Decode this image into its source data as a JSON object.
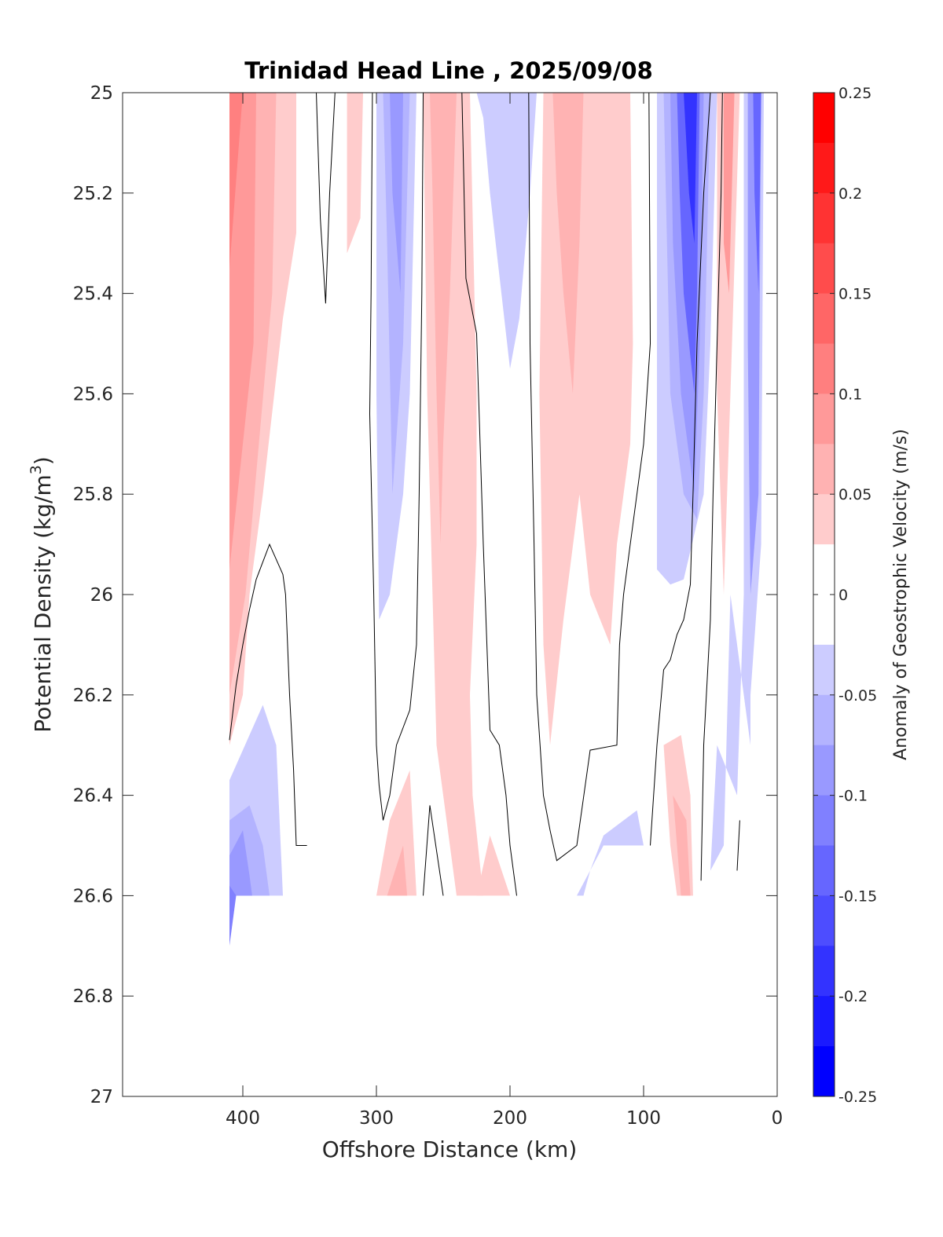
{
  "chart_data": {
    "type": "heatmap",
    "title": "Trinidad Head Line , 2025/09/08",
    "xlabel": "Offshore Distance (km)",
    "ylabel_main": "Potential Density (kg/m",
    "ylabel_sup": "3",
    "ylabel_close": ")",
    "colorbar_label": "Anomaly of Geostrophic Velocity (m/s)",
    "x_axis": {
      "min": 0,
      "max": 490,
      "reversed": true,
      "ticks": [
        400,
        300,
        200,
        100,
        0
      ],
      "tick_labels": [
        "400",
        "300",
        "200",
        "100",
        "0"
      ]
    },
    "y_axis": {
      "min": 25,
      "max": 27,
      "reversed": true,
      "ticks": [
        25,
        25.2,
        25.4,
        25.6,
        25.8,
        26,
        26.2,
        26.4,
        26.6,
        26.8,
        27
      ],
      "tick_labels": [
        "25",
        "25.2",
        "25.4",
        "25.6",
        "25.8",
        "26",
        "26.2",
        "26.4",
        "26.6",
        "26.8",
        "27"
      ]
    },
    "colorbar": {
      "min": -0.25,
      "max": 0.25,
      "step": 0.025,
      "ticks": [
        0.25,
        0.2,
        0.15,
        0.1,
        0.05,
        0,
        -0.05,
        -0.1,
        -0.15,
        -0.2,
        -0.25
      ],
      "tick_labels": [
        "0.25",
        "0.2",
        "0.15",
        "0.1",
        "0.05",
        "0",
        "-0.05",
        "-0.1",
        "-0.15",
        "-0.2",
        "-0.25"
      ],
      "negative_color": "#0000ff",
      "positive_color": "#ff0000",
      "zero_color": "#ffffff"
    },
    "grid": false,
    "contour_levels": [
      0
    ],
    "shaded_regions": [
      {
        "value": 0.05,
        "polygon": [
          [
            410,
            25
          ],
          [
            360,
            25
          ],
          [
            360,
            25.28
          ],
          [
            370,
            25.45
          ],
          [
            385,
            25.8
          ],
          [
            395,
            26.0
          ],
          [
            400,
            26.2
          ],
          [
            410,
            26.3
          ]
        ]
      },
      {
        "value": 0.075,
        "polygon": [
          [
            410,
            25
          ],
          [
            375,
            25
          ],
          [
            378,
            25.4
          ],
          [
            388,
            25.7
          ],
          [
            398,
            26.0
          ],
          [
            410,
            26.2
          ]
        ]
      },
      {
        "value": 0.1,
        "polygon": [
          [
            410,
            25
          ],
          [
            390,
            25
          ],
          [
            392,
            25.5
          ],
          [
            410,
            25.95
          ]
        ]
      },
      {
        "value": 0.125,
        "polygon": [
          [
            410,
            25
          ],
          [
            400,
            25
          ],
          [
            410,
            25.35
          ]
        ]
      },
      {
        "value": -0.05,
        "polygon": [
          [
            410,
            26.37
          ],
          [
            390,
            26.25
          ],
          [
            385,
            26.22
          ],
          [
            375,
            26.3
          ],
          [
            370,
            26.6
          ],
          [
            410,
            26.6
          ]
        ]
      },
      {
        "value": -0.075,
        "polygon": [
          [
            410,
            26.45
          ],
          [
            395,
            26.42
          ],
          [
            385,
            26.5
          ],
          [
            380,
            26.6
          ],
          [
            410,
            26.6
          ]
        ]
      },
      {
        "value": -0.1,
        "polygon": [
          [
            410,
            26.52
          ],
          [
            400,
            26.47
          ],
          [
            395,
            26.56
          ],
          [
            393,
            26.6
          ],
          [
            410,
            26.6
          ]
        ]
      },
      {
        "value": -0.125,
        "polygon": [
          [
            410,
            26.58
          ],
          [
            405,
            26.6
          ],
          [
            410,
            26.7
          ]
        ]
      },
      {
        "value": 0.05,
        "polygon": [
          [
            322,
            25
          ],
          [
            310,
            25
          ],
          [
            312,
            25.25
          ],
          [
            322,
            25.32
          ]
        ]
      },
      {
        "value": -0.05,
        "polygon": [
          [
            300,
            25
          ],
          [
            270,
            25
          ],
          [
            275,
            25.6
          ],
          [
            280,
            25.8
          ],
          [
            290,
            26.0
          ],
          [
            298,
            26.05
          ],
          [
            300,
            25.6
          ]
        ]
      },
      {
        "value": -0.075,
        "polygon": [
          [
            295,
            25
          ],
          [
            275,
            25
          ],
          [
            280,
            25.5
          ],
          [
            288,
            25.8
          ],
          [
            292,
            25.3
          ]
        ]
      },
      {
        "value": -0.1,
        "polygon": [
          [
            290,
            25
          ],
          [
            280,
            25
          ],
          [
            282,
            25.4
          ],
          [
            288,
            25.2
          ]
        ]
      },
      {
        "value": 0.05,
        "polygon": [
          [
            265,
            25
          ],
          [
            230,
            25
          ],
          [
            225,
            25.6
          ],
          [
            225,
            25.9
          ],
          [
            230,
            26.2
          ],
          [
            228,
            26.4
          ],
          [
            220,
            26.6
          ],
          [
            240,
            26.6
          ],
          [
            255,
            26.3
          ],
          [
            258,
            26.0
          ],
          [
            262,
            25.6
          ]
        ]
      },
      {
        "value": 0.075,
        "polygon": [
          [
            260,
            25
          ],
          [
            240,
            25
          ],
          [
            245,
            25.4
          ],
          [
            250,
            25.7
          ],
          [
            252,
            25.9
          ],
          [
            255,
            25.6
          ],
          [
            258,
            25.2
          ]
        ]
      },
      {
        "value": 0.05,
        "polygon": [
          [
            275,
            26.35
          ],
          [
            270,
            26.6
          ],
          [
            300,
            26.6
          ],
          [
            290,
            26.45
          ]
        ]
      },
      {
        "value": 0.075,
        "polygon": [
          [
            280,
            26.5
          ],
          [
            277,
            26.6
          ],
          [
            292,
            26.6
          ]
        ]
      },
      {
        "value": -0.05,
        "polygon": [
          [
            225,
            25
          ],
          [
            180,
            25
          ],
          [
            185,
            25.2
          ],
          [
            193,
            25.45
          ],
          [
            200,
            25.55
          ],
          [
            215,
            25.2
          ],
          [
            220,
            25.05
          ]
        ]
      },
      {
        "value": 0.05,
        "polygon": [
          [
            175,
            25
          ],
          [
            110,
            25
          ],
          [
            108,
            25.5
          ],
          [
            110,
            25.7
          ],
          [
            120,
            25.9
          ],
          [
            125,
            26.1
          ],
          [
            140,
            26.0
          ],
          [
            148,
            25.8
          ],
          [
            160,
            26.05
          ],
          [
            170,
            26.3
          ],
          [
            175,
            26.1
          ],
          [
            178,
            25.6
          ]
        ]
      },
      {
        "value": 0.075,
        "polygon": [
          [
            168,
            25
          ],
          [
            145,
            25
          ],
          [
            148,
            25.3
          ],
          [
            153,
            25.6
          ],
          [
            160,
            25.4
          ],
          [
            165,
            25.2
          ]
        ]
      },
      {
        "value": 0.05,
        "polygon": [
          [
            215,
            26.48
          ],
          [
            200,
            26.6
          ],
          [
            225,
            26.6
          ]
        ]
      },
      {
        "value": -0.05,
        "polygon": [
          [
            150,
            26.6
          ],
          [
            130,
            26.5
          ],
          [
            100,
            26.5
          ],
          [
            105,
            26.43
          ],
          [
            130,
            26.48
          ],
          [
            140,
            26.55
          ],
          [
            145,
            26.6
          ]
        ]
      },
      {
        "value": -0.05,
        "polygon": [
          [
            90,
            25
          ],
          [
            45,
            25
          ],
          [
            50,
            25.5
          ],
          [
            55,
            25.8
          ],
          [
            70,
            25.97
          ],
          [
            80,
            25.98
          ],
          [
            90,
            25.95
          ]
        ]
      },
      {
        "value": -0.075,
        "polygon": [
          [
            85,
            25
          ],
          [
            50,
            25
          ],
          [
            55,
            25.6
          ],
          [
            60,
            25.85
          ],
          [
            70,
            25.8
          ],
          [
            80,
            25.6
          ]
        ]
      },
      {
        "value": -0.1,
        "polygon": [
          [
            80,
            25
          ],
          [
            55,
            25
          ],
          [
            58,
            25.5
          ],
          [
            62,
            25.8
          ],
          [
            72,
            25.6
          ],
          [
            78,
            25.3
          ]
        ]
      },
      {
        "value": -0.15,
        "polygon": [
          [
            75,
            25
          ],
          [
            58,
            25
          ],
          [
            60,
            25.4
          ],
          [
            62,
            25.6
          ],
          [
            70,
            25.4
          ],
          [
            73,
            25.2
          ]
        ]
      },
      {
        "value": -0.2,
        "polygon": [
          [
            70,
            25
          ],
          [
            60,
            25
          ],
          [
            62,
            25.3
          ],
          [
            66,
            25.2
          ]
        ]
      },
      {
        "value": 0.05,
        "polygon": [
          [
            45,
            25
          ],
          [
            28,
            25
          ],
          [
            35,
            25.6
          ],
          [
            40,
            26.0
          ],
          [
            45,
            25.6
          ]
        ]
      },
      {
        "value": 0.1,
        "polygon": [
          [
            40,
            25
          ],
          [
            32,
            25
          ],
          [
            36,
            25.4
          ],
          [
            40,
            25.3
          ]
        ]
      },
      {
        "value": -0.05,
        "polygon": [
          [
            25,
            25
          ],
          [
            10,
            25
          ],
          [
            12,
            25.9
          ],
          [
            20,
            26.2
          ],
          [
            20,
            26.3
          ],
          [
            30,
            26.1
          ],
          [
            35,
            26.0
          ],
          [
            40,
            26.5
          ],
          [
            50,
            26.55
          ],
          [
            45,
            26.3
          ],
          [
            30,
            26.4
          ],
          [
            25,
            26.0
          ]
        ]
      },
      {
        "value": -0.1,
        "polygon": [
          [
            22,
            25
          ],
          [
            12,
            25
          ],
          [
            14,
            25.8
          ],
          [
            20,
            26.0
          ],
          [
            22,
            25.5
          ]
        ]
      },
      {
        "value": -0.15,
        "polygon": [
          [
            18,
            25
          ],
          [
            12,
            25
          ],
          [
            14,
            25.4
          ],
          [
            17,
            25.2
          ]
        ]
      },
      {
        "value": 0.05,
        "polygon": [
          [
            85,
            26.3
          ],
          [
            80,
            26.5
          ],
          [
            75,
            26.6
          ],
          [
            63,
            26.6
          ],
          [
            65,
            26.4
          ],
          [
            72,
            26.28
          ]
        ]
      },
      {
        "value": 0.075,
        "polygon": [
          [
            78,
            26.4
          ],
          [
            72,
            26.6
          ],
          [
            65,
            26.6
          ],
          [
            68,
            26.45
          ]
        ]
      }
    ],
    "contours_zero": [
      [
        [
          410,
          26.29
        ],
        [
          405,
          26.18
        ],
        [
          400,
          26.1
        ],
        [
          395,
          26.03
        ],
        [
          390,
          25.97
        ],
        [
          380,
          25.9
        ],
        [
          370,
          25.96
        ],
        [
          368,
          26.0
        ],
        [
          365,
          26.2
        ],
        [
          362,
          26.35
        ],
        [
          360,
          26.5
        ],
        [
          352,
          26.5
        ]
      ],
      [
        [
          345,
          25
        ],
        [
          342,
          25.25
        ],
        [
          338,
          25.42
        ],
        [
          335,
          25.2
        ],
        [
          331,
          25
        ]
      ],
      [
        [
          303,
          25
        ],
        [
          304,
          25.4
        ],
        [
          305,
          25.64
        ],
        [
          302,
          26.0
        ],
        [
          300,
          26.3
        ],
        [
          298,
          26.38
        ],
        [
          295,
          26.45
        ],
        [
          290,
          26.4
        ],
        [
          285,
          26.3
        ],
        [
          275,
          26.23
        ],
        [
          270,
          26.1
        ],
        [
          268,
          25.8
        ],
        [
          266,
          25.4
        ],
        [
          265,
          25
        ]
      ],
      [
        [
          236,
          25
        ],
        [
          233,
          25.37
        ],
        [
          225,
          25.48
        ],
        [
          220,
          25.9
        ],
        [
          215,
          26.27
        ],
        [
          208,
          26.3
        ],
        [
          203,
          26.4
        ],
        [
          200,
          26.5
        ],
        [
          195,
          26.6
        ]
      ],
      [
        [
          265,
          26.6
        ],
        [
          260,
          26.42
        ],
        [
          250,
          26.6
        ]
      ],
      [
        [
          186,
          25
        ],
        [
          185,
          25.5
        ],
        [
          182,
          25.9
        ],
        [
          180,
          26.2
        ],
        [
          175,
          26.4
        ],
        [
          170,
          26.47
        ],
        [
          165,
          26.53
        ],
        [
          150,
          26.5
        ],
        [
          140,
          26.31
        ],
        [
          120,
          26.3
        ],
        [
          118,
          26.1
        ],
        [
          115,
          26.0
        ],
        [
          100,
          25.7
        ],
        [
          95,
          25.5
        ],
        [
          96,
          25.0
        ]
      ],
      [
        [
          95,
          26.5
        ],
        [
          90,
          26.3
        ],
        [
          85,
          26.15
        ],
        [
          80,
          26.13
        ],
        [
          75,
          26.08
        ],
        [
          70,
          26.05
        ],
        [
          65,
          25.98
        ],
        [
          63,
          25.8
        ],
        [
          60,
          25.5
        ],
        [
          55,
          25.2
        ],
        [
          50,
          25.0
        ]
      ],
      [
        [
          57,
          26.57
        ],
        [
          55,
          26.3
        ],
        [
          52,
          26.15
        ],
        [
          50,
          26.05
        ],
        [
          48,
          25.8
        ],
        [
          45,
          25.5
        ],
        [
          42,
          25.2
        ],
        [
          41,
          25.0
        ]
      ],
      [
        [
          30,
          26.55
        ],
        [
          28,
          26.45
        ]
      ]
    ]
  }
}
